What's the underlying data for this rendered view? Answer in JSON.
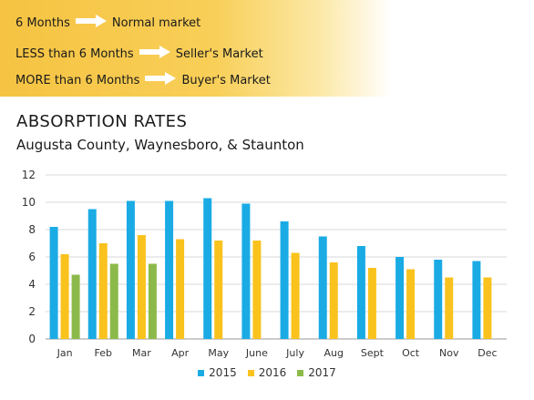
{
  "banner": {
    "rules": [
      {
        "condition": "6 Months",
        "result": "Normal market"
      },
      {
        "condition": "LESS than 6 Months",
        "result": "Seller's Market"
      },
      {
        "condition": "MORE than 6 Months",
        "result": "Buyer's Market"
      }
    ],
    "arrow_icon": "right-arrow-icon"
  },
  "chart_data": {
    "type": "bar",
    "title": "ABSORPTION RATES",
    "subtitle": "Augusta County, Waynesboro, & Staunton",
    "categories": [
      "Jan",
      "Feb",
      "Mar",
      "Apr",
      "May",
      "June",
      "July",
      "Aug",
      "Sept",
      "Oct",
      "Nov",
      "Dec"
    ],
    "series": [
      {
        "name": "2015",
        "color": "#1aabe5",
        "values": [
          8.2,
          9.5,
          10.1,
          10.1,
          10.3,
          9.9,
          8.6,
          7.5,
          6.8,
          6.0,
          5.8,
          5.7
        ]
      },
      {
        "name": "2016",
        "color": "#f9c21d",
        "values": [
          6.2,
          7.0,
          7.6,
          7.3,
          7.2,
          7.2,
          6.3,
          5.6,
          5.2,
          5.1,
          4.5,
          4.5
        ]
      },
      {
        "name": "2017",
        "color": "#8cba4a",
        "values": [
          4.7,
          5.5,
          5.5,
          null,
          null,
          null,
          null,
          null,
          null,
          null,
          null,
          null
        ]
      }
    ],
    "ylim": [
      0,
      12
    ],
    "yticks": [
      0,
      2,
      4,
      6,
      8,
      10,
      12
    ],
    "grid": true,
    "legend": "bottom-center"
  }
}
